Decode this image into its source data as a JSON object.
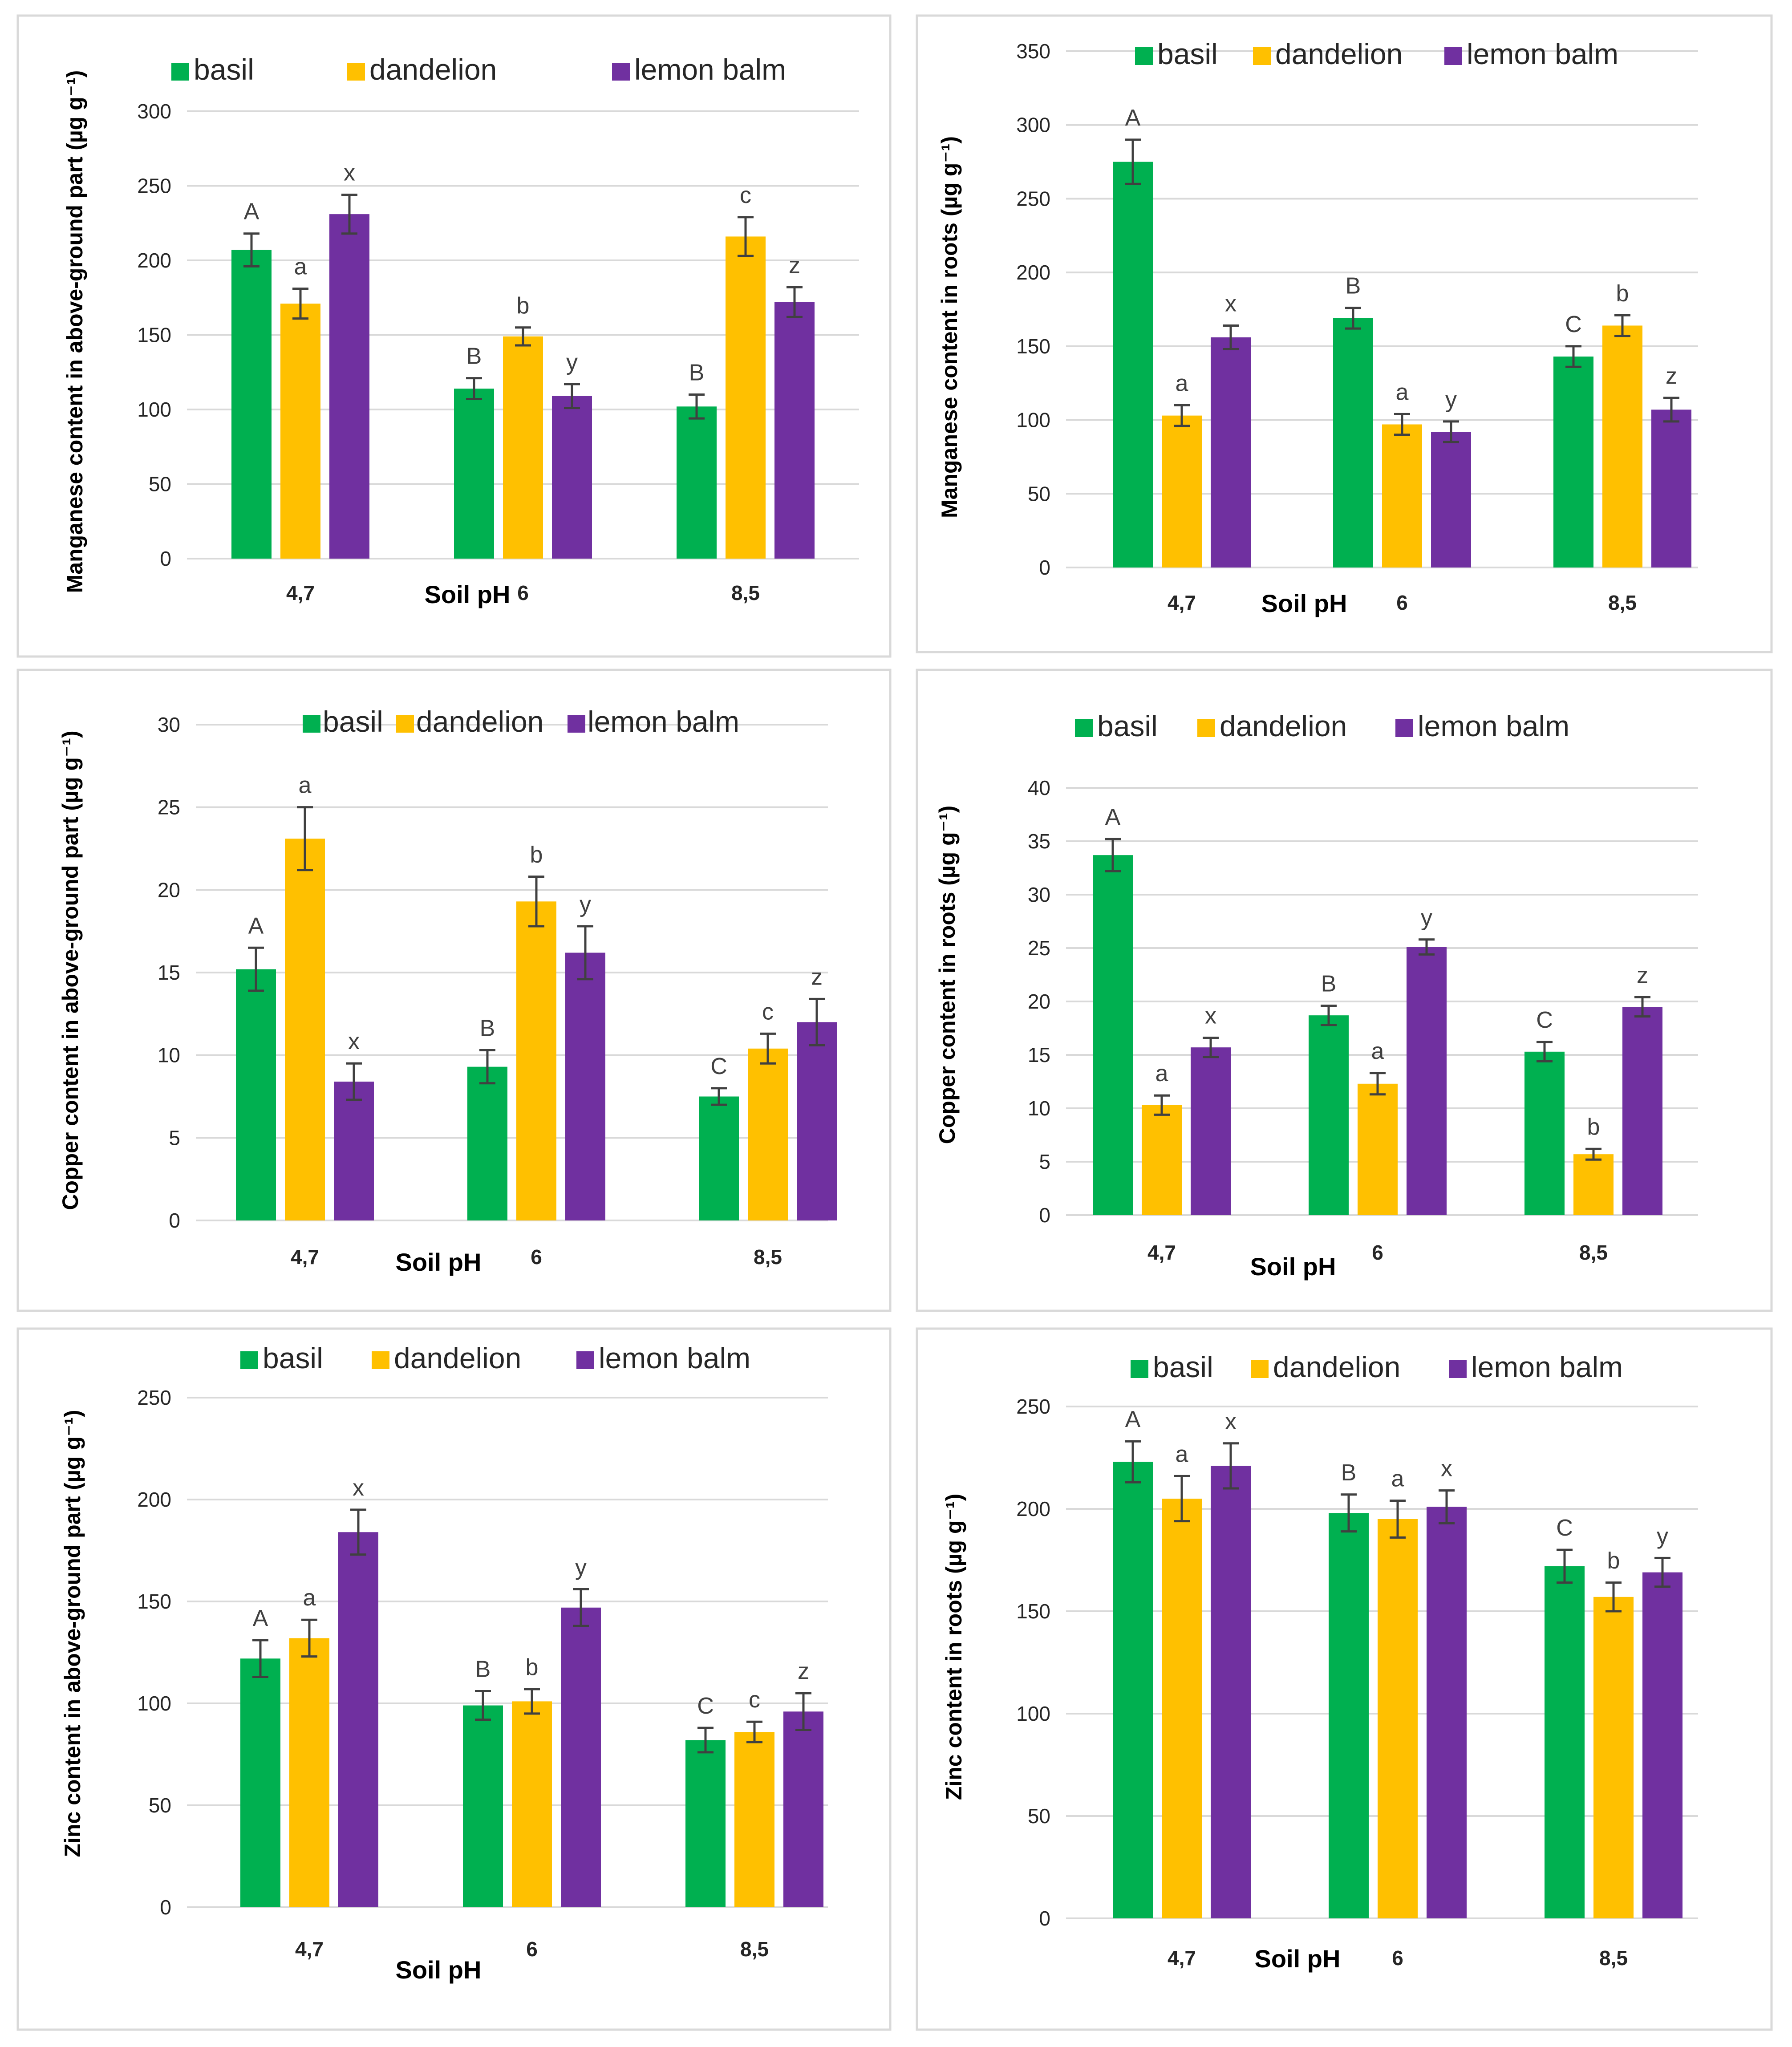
{
  "legend": [
    "basil",
    "dandelion",
    "lemon balm"
  ],
  "colors": {
    "basil": "#00b050",
    "dandelion": "#ffc000",
    "lemon balm": "#7030a0"
  },
  "chart_data": [
    {
      "type": "bar",
      "ylabel": "Manganese content in above-ground part (µg g⁻¹)",
      "xlabel": "Soil pH",
      "categories": [
        "4,7",
        "6",
        "8,5"
      ],
      "ylim": [
        0,
        300
      ],
      "yticks": [
        0,
        50,
        100,
        150,
        200,
        250,
        300
      ],
      "series": [
        {
          "name": "basil",
          "values": [
            207,
            114,
            102
          ],
          "errors": [
            11,
            7,
            8
          ],
          "letters": [
            "A",
            "B",
            "B"
          ]
        },
        {
          "name": "dandelion",
          "values": [
            171,
            149,
            216
          ],
          "errors": [
            10,
            6,
            13
          ],
          "letters": [
            "a",
            "b",
            "c"
          ]
        },
        {
          "name": "lemon balm",
          "values": [
            231,
            109,
            172
          ],
          "errors": [
            13,
            8,
            10
          ],
          "letters": [
            "x",
            "y",
            "z"
          ]
        }
      ]
    },
    {
      "type": "bar",
      "ylabel": "Manganese content in roots (µg g⁻¹)",
      "xlabel": "Soil pH",
      "categories": [
        "4,7",
        "6",
        "8,5"
      ],
      "ylim": [
        0,
        350
      ],
      "yticks": [
        0,
        50,
        100,
        150,
        200,
        250,
        300,
        350
      ],
      "series": [
        {
          "name": "basil",
          "values": [
            275,
            169,
            143
          ],
          "errors": [
            15,
            7,
            7
          ],
          "letters": [
            "A",
            "B",
            "C"
          ]
        },
        {
          "name": "dandelion",
          "values": [
            103,
            97,
            164
          ],
          "errors": [
            7,
            7,
            7
          ],
          "letters": [
            "a",
            "a",
            "b"
          ]
        },
        {
          "name": "lemon balm",
          "values": [
            156,
            92,
            107
          ],
          "errors": [
            8,
            7,
            8
          ],
          "letters": [
            "x",
            "y",
            "z"
          ]
        }
      ]
    },
    {
      "type": "bar",
      "ylabel": "Copper content in above-ground part (µg g⁻¹)",
      "xlabel": "Soil pH",
      "categories": [
        "4,7",
        "6",
        "8,5"
      ],
      "ylim": [
        0,
        30
      ],
      "yticks": [
        0,
        5,
        10,
        15,
        20,
        25,
        30
      ],
      "series": [
        {
          "name": "basil",
          "values": [
            15.2,
            9.3,
            7.5
          ],
          "errors": [
            1.3,
            1.0,
            0.5
          ],
          "letters": [
            "A",
            "B",
            "C"
          ]
        },
        {
          "name": "dandelion",
          "values": [
            23.1,
            19.3,
            10.4
          ],
          "errors": [
            1.9,
            1.5,
            0.9
          ],
          "letters": [
            "a",
            "b",
            "c"
          ]
        },
        {
          "name": "lemon balm",
          "values": [
            8.4,
            16.2,
            12.0
          ],
          "errors": [
            1.1,
            1.6,
            1.4
          ],
          "letters": [
            "x",
            "y",
            "z"
          ]
        }
      ]
    },
    {
      "type": "bar",
      "ylabel": "Copper content in roots (µg g⁻¹)",
      "xlabel": "Soil pH",
      "categories": [
        "4,7",
        "6",
        "8,5"
      ],
      "ylim": [
        0,
        40
      ],
      "yticks": [
        0,
        5,
        10,
        15,
        20,
        25,
        30,
        35,
        40
      ],
      "series": [
        {
          "name": "basil",
          "values": [
            33.7,
            18.7,
            15.3
          ],
          "errors": [
            1.5,
            0.9,
            0.9
          ],
          "letters": [
            "A",
            "B",
            "C"
          ]
        },
        {
          "name": "dandelion",
          "values": [
            10.3,
            12.3,
            5.7
          ],
          "errors": [
            0.9,
            1.0,
            0.5
          ],
          "letters": [
            "a",
            "a",
            "b"
          ]
        },
        {
          "name": "lemon balm",
          "values": [
            15.7,
            25.1,
            19.5
          ],
          "errors": [
            0.9,
            0.7,
            0.9
          ],
          "letters": [
            "x",
            "y",
            "z"
          ]
        }
      ]
    },
    {
      "type": "bar",
      "ylabel": "Zinc content in above-ground part (µg g⁻¹)",
      "xlabel": "Soil pH",
      "categories": [
        "4,7",
        "6",
        "8,5"
      ],
      "ylim": [
        0,
        250
      ],
      "yticks": [
        0,
        50,
        100,
        150,
        200,
        250
      ],
      "series": [
        {
          "name": "basil",
          "values": [
            122,
            99,
            82
          ],
          "errors": [
            9,
            7,
            6
          ],
          "letters": [
            "A",
            "B",
            "C"
          ]
        },
        {
          "name": "dandelion",
          "values": [
            132,
            101,
            86
          ],
          "errors": [
            9,
            6,
            5
          ],
          "letters": [
            "a",
            "b",
            "c"
          ]
        },
        {
          "name": "lemon balm",
          "values": [
            184,
            147,
            96
          ],
          "errors": [
            11,
            9,
            9
          ],
          "letters": [
            "x",
            "y",
            "z"
          ]
        }
      ]
    },
    {
      "type": "bar",
      "ylabel": "Zinc content in roots (µg g⁻¹)",
      "xlabel": "Soil pH",
      "categories": [
        "4,7",
        "6",
        "8,5"
      ],
      "ylim": [
        0,
        250
      ],
      "yticks": [
        0,
        50,
        100,
        150,
        200,
        250
      ],
      "series": [
        {
          "name": "basil",
          "values": [
            223,
            198,
            172
          ],
          "errors": [
            10,
            9,
            8
          ],
          "letters": [
            "A",
            "B",
            "C"
          ]
        },
        {
          "name": "dandelion",
          "values": [
            205,
            195,
            157
          ],
          "errors": [
            11,
            9,
            7
          ],
          "letters": [
            "a",
            "a",
            "b"
          ]
        },
        {
          "name": "lemon balm",
          "values": [
            221,
            201,
            169
          ],
          "errors": [
            11,
            8,
            7
          ],
          "letters": [
            "x",
            "x",
            "y"
          ]
        }
      ]
    }
  ]
}
